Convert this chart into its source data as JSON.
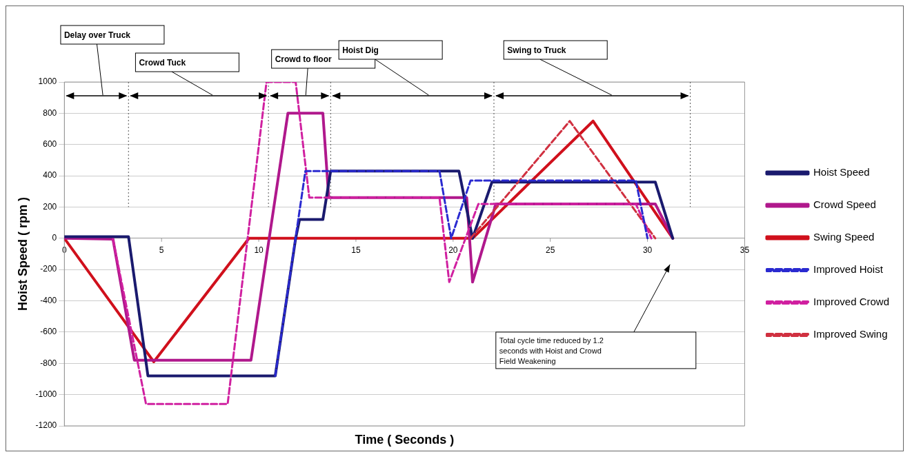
{
  "chart_data": {
    "type": "line",
    "xlabel": "Time ( Seconds )",
    "ylabel": "Hoist Speed ( rpm )",
    "xlim": [
      0,
      35
    ],
    "xticks": [
      0,
      5,
      10,
      15,
      20,
      25,
      30,
      35
    ],
    "ylim": [
      -1200,
      1000
    ],
    "yticks": [
      -1200,
      -1000,
      -800,
      -600,
      -400,
      -200,
      0,
      200,
      400,
      600,
      800,
      1000
    ],
    "grid": "y",
    "legend": "right",
    "marker": "none",
    "series": [
      {
        "name": "Hoist Speed",
        "color": "#1a1a6e",
        "line_style": "solid",
        "x": [
          0,
          3.3,
          4.3,
          10.85,
          11.9,
          12.1,
          13.3,
          13.7,
          20.3,
          21.0,
          22.0,
          30.4,
          31.3
        ],
        "values": [
          10,
          10,
          -880,
          -880,
          0,
          120,
          120,
          430,
          430,
          0,
          360,
          360,
          0
        ]
      },
      {
        "name": "Crowd Speed",
        "color": "#b0188c",
        "line_style": "solid",
        "x": [
          0,
          2.5,
          3.6,
          9.6,
          11.5,
          13.3,
          13.6,
          20.7,
          21.0,
          22.2,
          30.4,
          31.3
        ],
        "values": [
          0,
          -5,
          -780,
          -780,
          800,
          800,
          260,
          260,
          -280,
          220,
          220,
          0
        ]
      },
      {
        "name": "Swing Speed",
        "color": "#d0101c",
        "line_style": "solid",
        "x": [
          0,
          4.6,
          9.5,
          21.0,
          27.2,
          31.3
        ],
        "values": [
          0,
          -790,
          0,
          0,
          750,
          0
        ]
      },
      {
        "name": "Improved Hoist",
        "color": "#2a2ad0",
        "line_style": "dashed",
        "x": [
          10.85,
          12.4,
          19.3,
          19.9,
          20.9,
          29.4,
          30.0
        ],
        "values": [
          -880,
          430,
          430,
          0,
          370,
          370,
          0
        ]
      },
      {
        "name": "Improved Crowd",
        "color": "#d020a0",
        "line_style": "dashed",
        "x": [
          2.5,
          4.2,
          8.4,
          10.4,
          11.9,
          12.6,
          19.3,
          19.8,
          21.3,
          29.4,
          30.2
        ],
        "values": [
          -5,
          -1060,
          -1060,
          1000,
          1000,
          260,
          260,
          -280,
          220,
          220,
          0
        ]
      },
      {
        "name": "Improved Swing",
        "color": "#d03040",
        "line_style": "dashed",
        "x": [
          20.9,
          26.0,
          30.4
        ],
        "values": [
          0,
          750,
          0
        ]
      }
    ],
    "ref_lines": [
      {
        "axis": "x",
        "value": 3.3,
        "line_style": "dotted"
      },
      {
        "axis": "x",
        "value": 10.5,
        "line_style": "dotted"
      },
      {
        "axis": "x",
        "value": 13.7,
        "line_style": "dotted"
      },
      {
        "axis": "x",
        "value": 22.1,
        "line_style": "dotted"
      },
      {
        "axis": "x",
        "value": 32.2,
        "line_style": "dotted"
      }
    ],
    "annotations": [
      "Delay over Truck",
      "Crowd Tuck",
      "Crowd to floor",
      "Hoist Dig",
      "Swing to Truck",
      "Total cycle time reduced by 1.2 seconds with Hoist and Crowd Field Weakening"
    ]
  }
}
